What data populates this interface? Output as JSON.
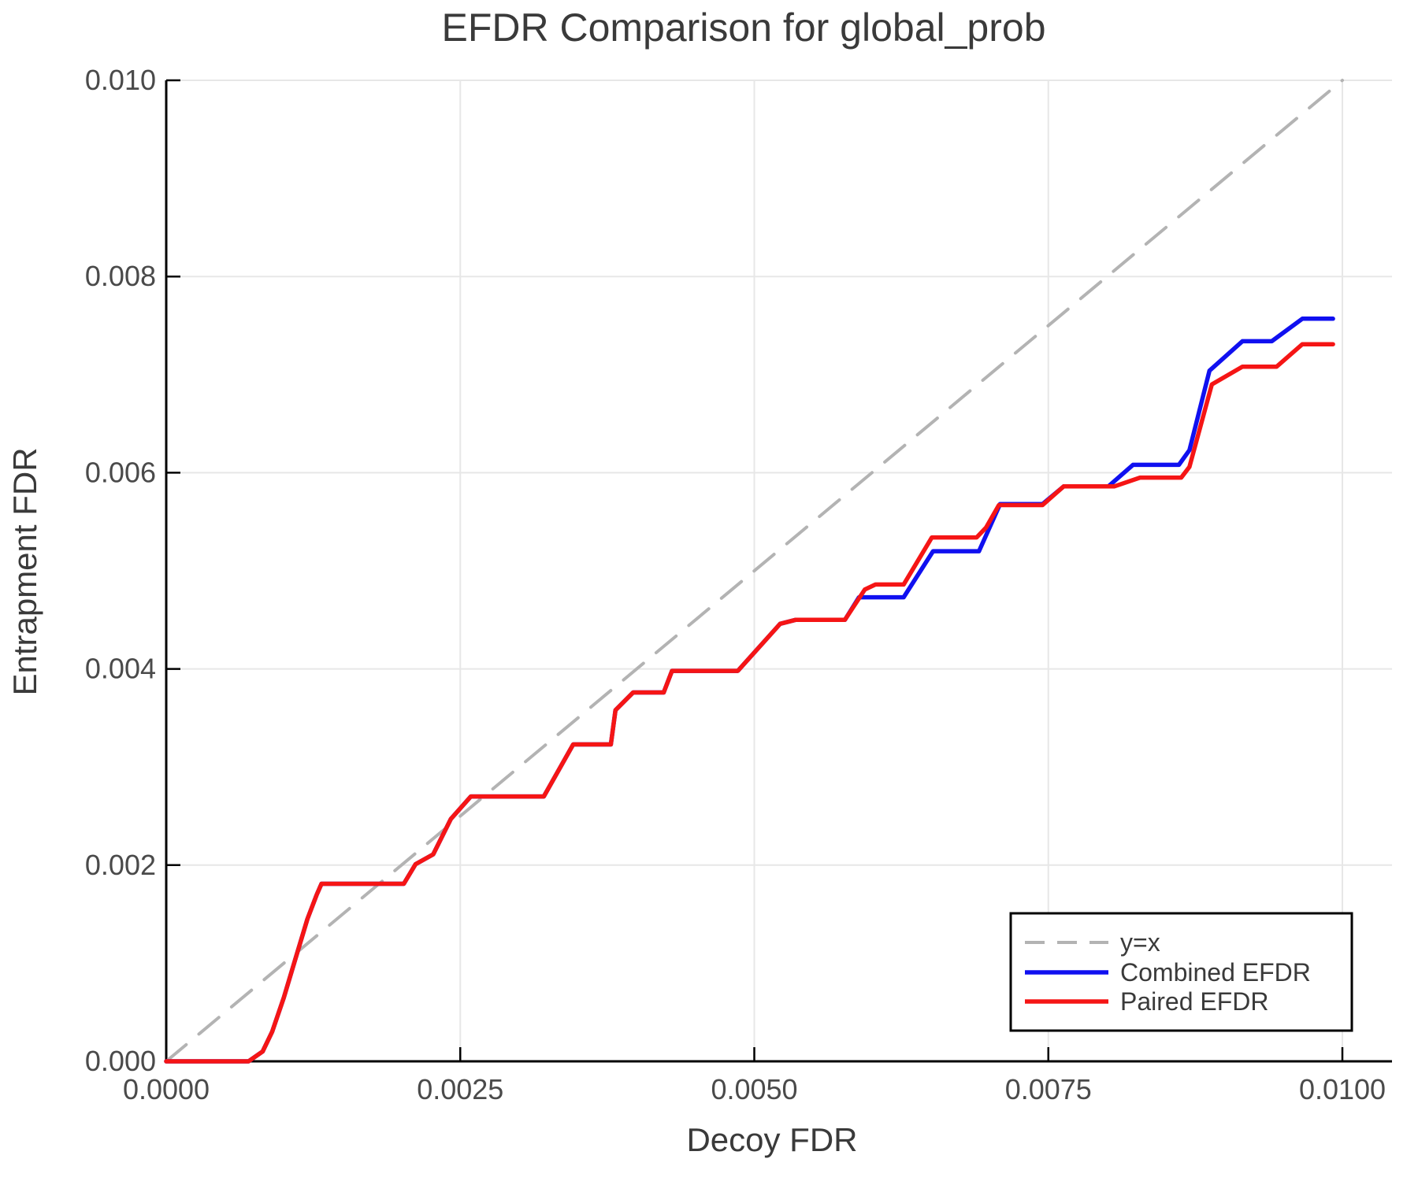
{
  "chart_data": {
    "type": "line",
    "title": "EFDR Comparison for global_prob",
    "xlabel": "Decoy FDR",
    "ylabel": "Entrapment FDR",
    "xlim": [
      0,
      0.0104
    ],
    "ylim": [
      0,
      0.01
    ],
    "grid": true,
    "legend_position": "lower right",
    "xticks": {
      "values": [
        0,
        0.0025,
        0.005,
        0.0075,
        0.01
      ],
      "labels": [
        "0.0000",
        "0.0025",
        "0.0050",
        "0.0075",
        "0.0100"
      ]
    },
    "yticks": {
      "values": [
        0,
        0.002,
        0.004,
        0.006,
        0.008,
        0.01
      ],
      "labels": [
        "0.000",
        "0.002",
        "0.004",
        "0.006",
        "0.008",
        "0.010"
      ]
    },
    "colors": {
      "identity": "#b3b3b3",
      "combined": "#1010f0",
      "paired": "#f51515",
      "grid": "#e7e7e7",
      "axis": "#000000",
      "title_text": "#3a3a3a",
      "tick_text": "#4a4a4a"
    },
    "series": [
      {
        "id": "identity",
        "name": "y=x",
        "color": "#b3b3b3",
        "dash": true,
        "width": 4,
        "points": [
          [
            0,
            0
          ],
          [
            0.01,
            0.01
          ]
        ]
      },
      {
        "id": "combined",
        "name": "Combined EFDR",
        "color": "#1010f0",
        "dash": false,
        "width": 5.5,
        "points": [
          [
            0.0,
            0.0
          ],
          [
            0.0007,
            0.0
          ],
          [
            0.00082,
            0.0001
          ],
          [
            0.0009,
            0.0003
          ],
          [
            0.001,
            0.00065
          ],
          [
            0.0011,
            0.00105
          ],
          [
            0.0012,
            0.00145
          ],
          [
            0.00128,
            0.0017
          ],
          [
            0.00132,
            0.00181
          ],
          [
            0.00202,
            0.00181
          ],
          [
            0.00212,
            0.00201
          ],
          [
            0.00227,
            0.00211
          ],
          [
            0.00242,
            0.00247
          ],
          [
            0.00259,
            0.0027
          ],
          [
            0.00321,
            0.0027
          ],
          [
            0.00346,
            0.00323
          ],
          [
            0.00378,
            0.00323
          ],
          [
            0.00382,
            0.00358
          ],
          [
            0.00397,
            0.00376
          ],
          [
            0.00423,
            0.00376
          ],
          [
            0.0043,
            0.00398
          ],
          [
            0.00486,
            0.00398
          ],
          [
            0.00522,
            0.00446
          ],
          [
            0.00535,
            0.0045
          ],
          [
            0.00577,
            0.0045
          ],
          [
            0.00589,
            0.00473
          ],
          [
            0.00627,
            0.00473
          ],
          [
            0.00652,
            0.0052
          ],
          [
            0.00691,
            0.0052
          ],
          [
            0.00709,
            0.00568
          ],
          [
            0.00745,
            0.00568
          ],
          [
            0.00763,
            0.00586
          ],
          [
            0.00801,
            0.00586
          ],
          [
            0.00822,
            0.00608
          ],
          [
            0.00861,
            0.00608
          ],
          [
            0.0087,
            0.00623
          ],
          [
            0.00887,
            0.00704
          ],
          [
            0.00915,
            0.00734
          ],
          [
            0.0094,
            0.00734
          ],
          [
            0.00966,
            0.00757
          ],
          [
            0.00992,
            0.00757
          ]
        ]
      },
      {
        "id": "paired",
        "name": "Paired EFDR",
        "color": "#f51515",
        "dash": false,
        "width": 5.5,
        "points": [
          [
            0.0,
            0.0
          ],
          [
            0.0007,
            0.0
          ],
          [
            0.00082,
            0.0001
          ],
          [
            0.0009,
            0.0003
          ],
          [
            0.001,
            0.00065
          ],
          [
            0.0011,
            0.00105
          ],
          [
            0.0012,
            0.00145
          ],
          [
            0.00128,
            0.0017
          ],
          [
            0.00132,
            0.00181
          ],
          [
            0.00202,
            0.00181
          ],
          [
            0.00212,
            0.00201
          ],
          [
            0.00227,
            0.00211
          ],
          [
            0.00242,
            0.00247
          ],
          [
            0.00259,
            0.0027
          ],
          [
            0.00321,
            0.0027
          ],
          [
            0.00346,
            0.00323
          ],
          [
            0.00378,
            0.00323
          ],
          [
            0.00382,
            0.00358
          ],
          [
            0.00397,
            0.00376
          ],
          [
            0.00423,
            0.00376
          ],
          [
            0.0043,
            0.00398
          ],
          [
            0.00486,
            0.00398
          ],
          [
            0.00522,
            0.00446
          ],
          [
            0.00535,
            0.0045
          ],
          [
            0.00577,
            0.0045
          ],
          [
            0.00594,
            0.00481
          ],
          [
            0.00603,
            0.00486
          ],
          [
            0.00627,
            0.00486
          ],
          [
            0.00651,
            0.00534
          ],
          [
            0.00689,
            0.00534
          ],
          [
            0.00697,
            0.00544
          ],
          [
            0.00708,
            0.00567
          ],
          [
            0.00745,
            0.00567
          ],
          [
            0.00763,
            0.00586
          ],
          [
            0.00806,
            0.00586
          ],
          [
            0.00828,
            0.00595
          ],
          [
            0.00863,
            0.00595
          ],
          [
            0.0087,
            0.00606
          ],
          [
            0.00889,
            0.0069
          ],
          [
            0.00915,
            0.00708
          ],
          [
            0.00944,
            0.00708
          ],
          [
            0.00966,
            0.00731
          ],
          [
            0.00992,
            0.00731
          ]
        ]
      }
    ]
  }
}
